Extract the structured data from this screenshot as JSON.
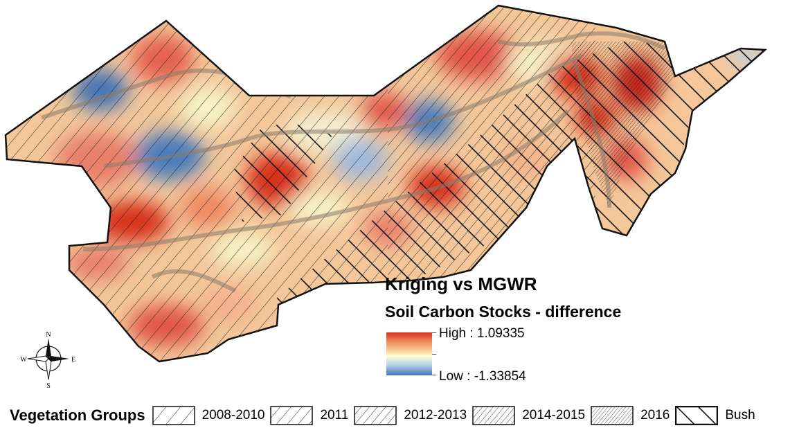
{
  "map": {
    "title": "Kriging vs MGWR",
    "subtitle": "Soil Carbon Stocks - difference",
    "color_ramp": {
      "high_label": "High : 1.09335",
      "low_label": "Low : -1.33854",
      "high_color": "#d7301f",
      "mid_color": "#ffffd9",
      "low_color": "#4575b4"
    }
  },
  "north_arrow": {
    "n": "N",
    "s": "S",
    "e": "E",
    "w": "W"
  },
  "vegetation_legend": {
    "title": "Vegetation Groups",
    "items": [
      {
        "label": "2008-2010",
        "pattern": "hatch-wide"
      },
      {
        "label": "2011",
        "pattern": "hatch-medium"
      },
      {
        "label": "2012-2013",
        "pattern": "hatch-close"
      },
      {
        "label": "2014-2015",
        "pattern": "hatch-dense"
      },
      {
        "label": "2016",
        "pattern": "hatch-very-dense"
      },
      {
        "label": "Bush",
        "pattern": "hatch-bold-forward"
      }
    ]
  }
}
